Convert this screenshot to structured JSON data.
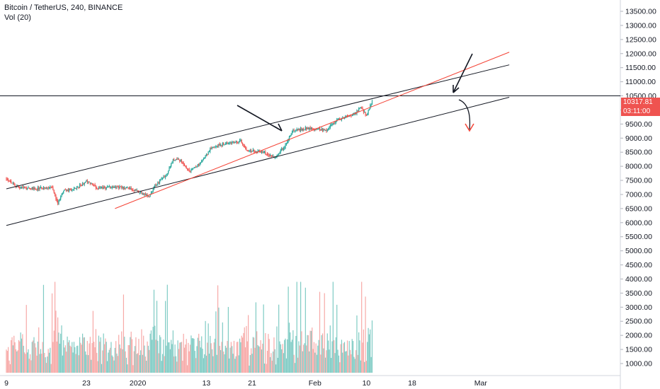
{
  "header": {
    "symbol": "Bitcoin / TetherUS, 240, BINANCE",
    "volume_indicator": "Vol (20)"
  },
  "price_tags": {
    "last_price": "10317.81",
    "countdown": "03:11:00"
  },
  "colors": {
    "up": "#26a69a",
    "down": "#ef5350",
    "up_volume": "#7fcbc4",
    "down_volume": "#f7a9a7",
    "trendline": "#131722",
    "red_line": "#f44336"
  },
  "chart_data": {
    "type": "candlestick",
    "y_axis_labels": [
      "13500.00",
      "13000.00",
      "12500.00",
      "12000.00",
      "11500.00",
      "11000.00",
      "10500.00",
      "10000.00",
      "9500.00",
      "9000.00",
      "8500.00",
      "8000.00",
      "7500.00",
      "7000.00",
      "6500.00",
      "6000.00",
      "5500.00",
      "5000.00",
      "4500.00",
      "4000.00",
      "3500.00",
      "3000.00",
      "2500.00",
      "2000.00",
      "1500.00",
      "1000.00"
    ],
    "price_axis": {
      "min": 1000,
      "max": 13500
    },
    "x_axis_labels": [
      "9",
      "23",
      "2020",
      "13",
      "21",
      "Feb",
      "10",
      "18",
      "Mar"
    ],
    "price_path": [
      [
        "2019-12-09",
        7580
      ],
      [
        "2019-12-11",
        7260
      ],
      [
        "2019-12-14",
        7200
      ],
      [
        "2019-12-17",
        7240
      ],
      [
        "2019-12-18",
        6700
      ],
      [
        "2019-12-19",
        7140
      ],
      [
        "2019-12-21",
        7180
      ],
      [
        "2019-12-23",
        7480
      ],
      [
        "2019-12-25",
        7210
      ],
      [
        "2019-12-28",
        7280
      ],
      [
        "2019-12-31",
        7190
      ],
      [
        "2020-01-03",
        6940
      ],
      [
        "2020-01-04",
        7320
      ],
      [
        "2020-01-06",
        7710
      ],
      [
        "2020-01-07",
        8200
      ],
      [
        "2020-01-08",
        8300
      ],
      [
        "2020-01-10",
        7830
      ],
      [
        "2020-01-12",
        8120
      ],
      [
        "2020-01-14",
        8700
      ],
      [
        "2020-01-17",
        8830
      ],
      [
        "2020-01-19",
        8900
      ],
      [
        "2020-01-20",
        8580
      ],
      [
        "2020-01-23",
        8480
      ],
      [
        "2020-01-25",
        8320
      ],
      [
        "2020-01-27",
        8780
      ],
      [
        "2020-01-28",
        9250
      ],
      [
        "2020-01-31",
        9360
      ],
      [
        "2020-02-03",
        9290
      ],
      [
        "2020-02-05",
        9650
      ],
      [
        "2020-02-08",
        9860
      ],
      [
        "2020-02-09",
        10120
      ],
      [
        "2020-02-10",
        9800
      ],
      [
        "2020-02-11",
        10310
      ]
    ],
    "volume_peak": 3900,
    "lines": {
      "resistance_horizontal": 10500,
      "upper_channel": [
        [
          "2019-12-09",
          7200
        ],
        [
          "2020-03-06",
          11600
        ]
      ],
      "lower_channel": [
        [
          "2019-12-09",
          5900
        ],
        [
          "2020-03-06",
          10450
        ]
      ],
      "red_trendline": [
        [
          "2019-12-28",
          6500
        ],
        [
          "2020-03-06",
          12050
        ]
      ]
    }
  }
}
